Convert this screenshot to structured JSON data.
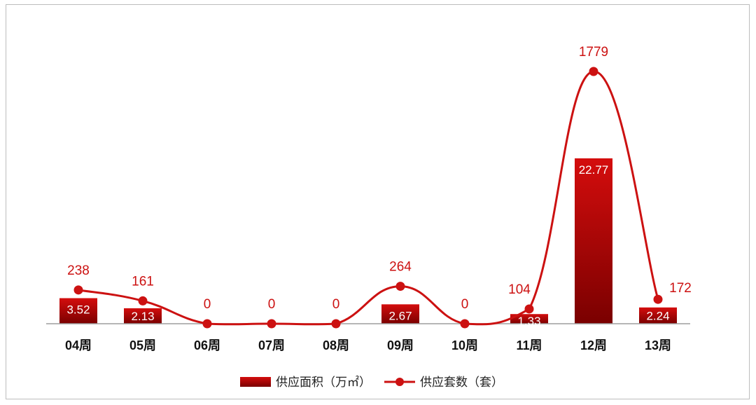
{
  "chart_data": {
    "type": "bar",
    "categories": [
      "04周",
      "05周",
      "06周",
      "07周",
      "08周",
      "09周",
      "10周",
      "11周",
      "12周",
      "13周"
    ],
    "series": [
      {
        "name": "供应面积（万㎡）",
        "type": "bar",
        "values": [
          3.52,
          2.13,
          0,
          0,
          0,
          2.67,
          0,
          1.33,
          22.77,
          2.24
        ],
        "labels": [
          "3.52",
          "2.13",
          "",
          "",
          "",
          "2.67",
          "",
          "1.33",
          "22.77",
          "2.24"
        ]
      },
      {
        "name": "供应套数（套）",
        "type": "line",
        "values": [
          238,
          161,
          0,
          0,
          0,
          264,
          0,
          104,
          1779,
          172
        ],
        "labels": [
          "238",
          "161",
          "0",
          "0",
          "0",
          "264",
          "0",
          "104",
          "1779",
          "172"
        ]
      }
    ],
    "legend_position": "bottom",
    "grid": false,
    "colors": {
      "bar_top": "#cc0a0a",
      "bar_bottom": "#7a0000",
      "line": "#cc1111",
      "axis": "#999999"
    }
  }
}
